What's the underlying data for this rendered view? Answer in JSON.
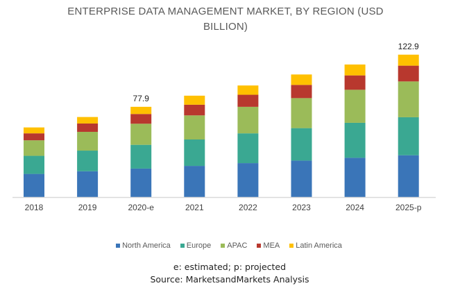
{
  "chart_data": {
    "type": "bar",
    "stacked": true,
    "title": "ENTERPRISE DATA MANAGEMENT MARKET, BY REGION (USD BILLION)",
    "title_lines": [
      "ENTERPRISE DATA MANAGEMENT MARKET, BY REGION (USD",
      "BILLION)"
    ],
    "categories": [
      "2018",
      "2019",
      "2020-e",
      "2021",
      "2022",
      "2023",
      "2024",
      "2025-p"
    ],
    "series": [
      {
        "name": "North America",
        "color": "#3a75b8",
        "values": [
          20.0,
          22.3,
          24.6,
          26.9,
          29.3,
          31.5,
          33.9,
          36.1
        ]
      },
      {
        "name": "Europe",
        "color": "#3aa892",
        "values": [
          15.6,
          17.8,
          20.5,
          22.8,
          25.7,
          28.0,
          30.2,
          32.8
        ]
      },
      {
        "name": "APAC",
        "color": "#9bbb59",
        "values": [
          13.4,
          16.2,
          18.2,
          20.8,
          22.9,
          25.9,
          28.5,
          30.9
        ]
      },
      {
        "name": "MEA",
        "color": "#b8382e",
        "values": [
          6.0,
          7.2,
          8.4,
          9.2,
          10.4,
          11.4,
          12.4,
          13.6
        ]
      },
      {
        "name": "Latin America",
        "color": "#ffc000",
        "values": [
          5.1,
          5.6,
          6.2,
          7.8,
          8.0,
          9.0,
          9.4,
          9.5
        ]
      }
    ],
    "data_labels": [
      {
        "category": "2020-e",
        "text": "77.9"
      },
      {
        "category": "2025-p",
        "text": "122.9"
      }
    ],
    "ylim": [
      0,
      130
    ],
    "grid": false,
    "y_axis_visible": false,
    "legend_position": "bottom"
  },
  "footnote": "e: estimated; p: projected",
  "source": "Source: MarketsandMarkets Analysis"
}
